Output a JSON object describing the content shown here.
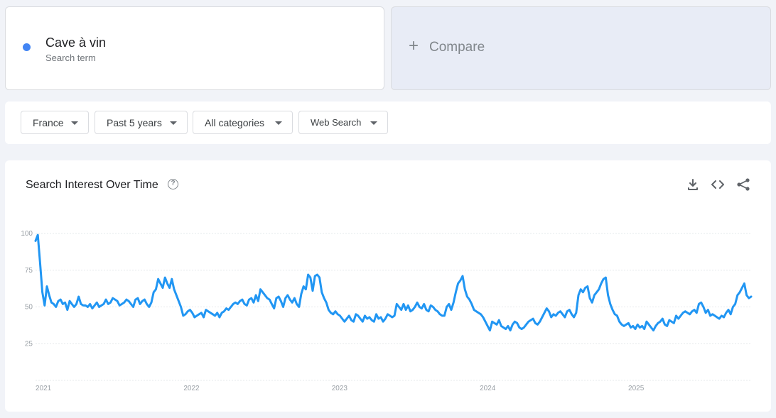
{
  "term": {
    "name": "Cave à vin",
    "subtitle": "Search term",
    "color": "#4285f4"
  },
  "compare": {
    "plus": "+",
    "label": "Compare"
  },
  "filters": {
    "geo": "France",
    "time": "Past 5 years",
    "category": "All categories",
    "property": "Web Search"
  },
  "chart_header": {
    "title": "Search Interest Over Time",
    "help": "?"
  },
  "chart_data": {
    "type": "line",
    "title": "Search Interest Over Time",
    "ylim": [
      0,
      100
    ],
    "y_ticks": [
      "100",
      "75",
      "50",
      "25"
    ],
    "x_ticks": [
      "2021",
      "2022",
      "2023",
      "2024",
      "2025"
    ],
    "x_range": [
      "2021-01-01",
      "2025-10-31"
    ],
    "grid": "horizontal",
    "line_color": "#2196f3",
    "series": [
      {
        "values": [
          95,
          99,
          80,
          60,
          51,
          64,
          58,
          53,
          52,
          50,
          54,
          55,
          52,
          53,
          48,
          54,
          52,
          50,
          52,
          57,
          52,
          51,
          51,
          50,
          52,
          49,
          51,
          53,
          50,
          51,
          52,
          55,
          52,
          53,
          56,
          55,
          54,
          51,
          52,
          53,
          55,
          54,
          52,
          50,
          55,
          56,
          52,
          54,
          55,
          52,
          50,
          53,
          60,
          62,
          69,
          66,
          63,
          70,
          66,
          63,
          69,
          62,
          58,
          54,
          50,
          44,
          45,
          47,
          48,
          46,
          43,
          44,
          45,
          46,
          43,
          48,
          47,
          46,
          45,
          44,
          46,
          43,
          46,
          47,
          49,
          48,
          50,
          52,
          53,
          52,
          54,
          55,
          52,
          51,
          55,
          56,
          53,
          58,
          54,
          62,
          60,
          58,
          56,
          55,
          52,
          49,
          56,
          57,
          54,
          50,
          56,
          58,
          55,
          53,
          56,
          52,
          50,
          59,
          64,
          62,
          72,
          70,
          61,
          71,
          72,
          70,
          60,
          56,
          53,
          48,
          46,
          45,
          47,
          45,
          44,
          42,
          40,
          42,
          44,
          41,
          40,
          45,
          44,
          42,
          40,
          44,
          42,
          43,
          41,
          40,
          45,
          42,
          43,
          40,
          42,
          45,
          44,
          43,
          44,
          52,
          50,
          48,
          52,
          48,
          51,
          47,
          48,
          50,
          53,
          50,
          49,
          52,
          48,
          47,
          51,
          50,
          48,
          47,
          45,
          44,
          44,
          50,
          52,
          48,
          53,
          60,
          66,
          68,
          71,
          62,
          57,
          55,
          52,
          48,
          47,
          46,
          45,
          43,
          40,
          37,
          34,
          40,
          39,
          38,
          41,
          37,
          36,
          35,
          37,
          34,
          38,
          40,
          39,
          36,
          35,
          36,
          38,
          40,
          41,
          42,
          39,
          38,
          40,
          43,
          46,
          49,
          47,
          43,
          45,
          44,
          46,
          47,
          45,
          43,
          47,
          48,
          45,
          43,
          46,
          58,
          62,
          60,
          63,
          64,
          56,
          53,
          58,
          60,
          62,
          66,
          69,
          70,
          58,
          52,
          48,
          45,
          44,
          40,
          38,
          37,
          38,
          39,
          36,
          37,
          35,
          38,
          36,
          37,
          35,
          40,
          38,
          36,
          34,
          37,
          39,
          40,
          42,
          38,
          37,
          41,
          40,
          39,
          44,
          42,
          44,
          46,
          47,
          46,
          45,
          47,
          48,
          46,
          52,
          53,
          50,
          46,
          48,
          44,
          45,
          44,
          43,
          42,
          44,
          43,
          46,
          48,
          45,
          50,
          52,
          58,
          60,
          63,
          66,
          58,
          56,
          57
        ]
      }
    ]
  }
}
